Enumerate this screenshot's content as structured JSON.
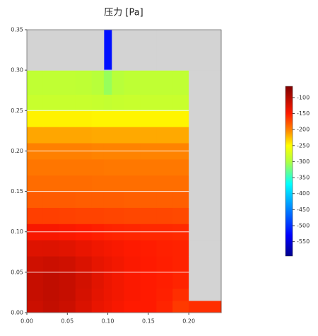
{
  "chart_data": {
    "type": "heatmap",
    "title": "压力 [Pa]",
    "x_edges": [
      0,
      0.02,
      0.04,
      0.06,
      0.08,
      0.095,
      0.105,
      0.12,
      0.14,
      0.16,
      0.18,
      0.2,
      0.24
    ],
    "y_edges": [
      0,
      0.015,
      0.03,
      0.05,
      0.07,
      0.09,
      0.11,
      0.13,
      0.15,
      0.17,
      0.19,
      0.21,
      0.23,
      0.25,
      0.27,
      0.3,
      0.35
    ],
    "z": [
      [
        -115,
        -110,
        -115,
        -125,
        -135,
        -140,
        -145,
        -150,
        -150,
        -155,
        -165,
        -160
      ],
      [
        -112,
        -108,
        -112,
        -122,
        -132,
        -138,
        -142,
        -147,
        -150,
        -153,
        -160,
        null
      ],
      [
        -112,
        -108,
        -112,
        -120,
        -130,
        -137,
        -142,
        -147,
        -150,
        -152,
        -155,
        null
      ],
      [
        -118,
        -115,
        -118,
        -125,
        -133,
        -138,
        -142,
        -147,
        -150,
        -152,
        -154,
        null
      ],
      [
        -128,
        -127,
        -130,
        -135,
        -140,
        -143,
        -146,
        -149,
        -151,
        -153,
        -154,
        null
      ],
      [
        -145,
        -145,
        -147,
        -150,
        -152,
        -154,
        -155,
        -156,
        -157,
        -157,
        -158,
        null
      ],
      [
        -168,
        -168,
        -169,
        -170,
        -170,
        -171,
        -171,
        -172,
        -172,
        -172,
        -173,
        null
      ],
      [
        -182,
        -182,
        -182,
        -183,
        -183,
        -183,
        -183,
        -184,
        -184,
        -184,
        -184,
        null
      ],
      [
        -190,
        -190,
        -190,
        -190,
        -191,
        -191,
        -191,
        -191,
        -191,
        -191,
        -191,
        null
      ],
      [
        -195,
        -195,
        -195,
        -195,
        -195,
        -196,
        -196,
        -196,
        -196,
        -196,
        -196,
        null
      ],
      [
        -200,
        -200,
        -200,
        -200,
        -201,
        -201,
        -201,
        -201,
        -201,
        -201,
        -201,
        null
      ],
      [
        -215,
        -215,
        -215,
        -215,
        -216,
        -216,
        -216,
        -216,
        -216,
        -216,
        -216,
        null
      ],
      [
        -245,
        -245,
        -245,
        -245,
        -246,
        -246,
        -246,
        -246,
        -246,
        -246,
        -246,
        null
      ],
      [
        -285,
        -285,
        -285,
        -285,
        -286,
        -288,
        -286,
        -285,
        -285,
        -285,
        -285,
        null
      ],
      [
        -290,
        -290,
        -290,
        -291,
        -295,
        -310,
        -295,
        -291,
        -290,
        -290,
        -290,
        null
      ],
      [
        null,
        null,
        null,
        null,
        null,
        -520,
        null,
        null,
        null,
        null,
        null,
        null
      ]
    ],
    "xlim": [
      0,
      0.24
    ],
    "ylim": [
      0,
      0.35
    ],
    "xticks": [
      {
        "value": 0,
        "label": "0.00"
      },
      {
        "value": 0.05,
        "label": "0.05"
      },
      {
        "value": 0.1,
        "label": "0.10"
      },
      {
        "value": 0.15,
        "label": "0.15"
      },
      {
        "value": 0.2,
        "label": "0.20"
      }
    ],
    "yticks": [
      {
        "value": 0,
        "label": "0.00"
      },
      {
        "value": 0.05,
        "label": "0.05"
      },
      {
        "value": 0.1,
        "label": "0.10"
      },
      {
        "value": 0.15,
        "label": "0.15"
      },
      {
        "value": 0.2,
        "label": "0.20"
      },
      {
        "value": 0.25,
        "label": "0.25"
      },
      {
        "value": 0.3,
        "label": "0.30"
      },
      {
        "value": 0.35,
        "label": "0.35"
      }
    ],
    "grid": true,
    "solid_color": "#d3d3d3",
    "clim": [
      -595,
      -65
    ],
    "cticks": [
      -100,
      -150,
      -200,
      -250,
      -300,
      -350,
      -400,
      -450,
      -500,
      -550
    ],
    "colorscale": [
      [
        -595,
        "#00008b"
      ],
      [
        -530,
        "#0000ff"
      ],
      [
        -450,
        "#0080ff"
      ],
      [
        -370,
        "#00ffff"
      ],
      [
        -300,
        "#b0ff40"
      ],
      [
        -250,
        "#ffff00"
      ],
      [
        -200,
        "#ff8000"
      ],
      [
        -150,
        "#ff1a00"
      ],
      [
        -65,
        "#800000"
      ]
    ]
  }
}
